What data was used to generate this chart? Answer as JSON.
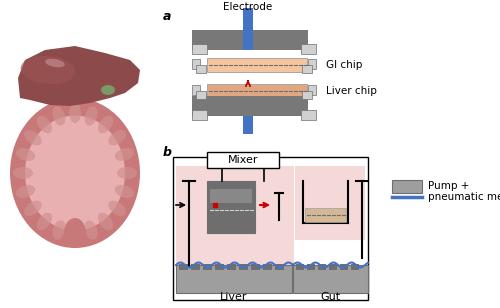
{
  "bg_color": "#ffffff",
  "gray_dark": "#6e6e6e",
  "gray_med": "#9e9e9e",
  "gray_light": "#d0d0d0",
  "gray_plate": "#787878",
  "blue_electrode": "#4472c4",
  "peach_gi": "#f5c5a0",
  "peach_liver": "#e0a880",
  "pink_fluid": "#f5d8d8",
  "red_arrow": "#cc0000",
  "white": "#ffffff",
  "black": "#000000",
  "blue_wave": "#4472c4",
  "tan_chip": "#d4b896",
  "label_a": "a",
  "label_b": "b",
  "label_electrode": "Electrode",
  "label_gi": "GI chip",
  "label_liver_chip": "Liver chip",
  "label_mixer": "Mixer",
  "label_liver": "Liver",
  "label_gut": "Gut",
  "label_pump": "Pump +",
  "label_pneumatic": "pneumatic membrane",
  "liver_body": "#8c4a4a",
  "liver_light": "#a05555",
  "gallbladder": "#7a9965",
  "intestine_outer": "#c87878",
  "intestine_inner": "#e8b0b0",
  "intestine_fold": "#d09090"
}
